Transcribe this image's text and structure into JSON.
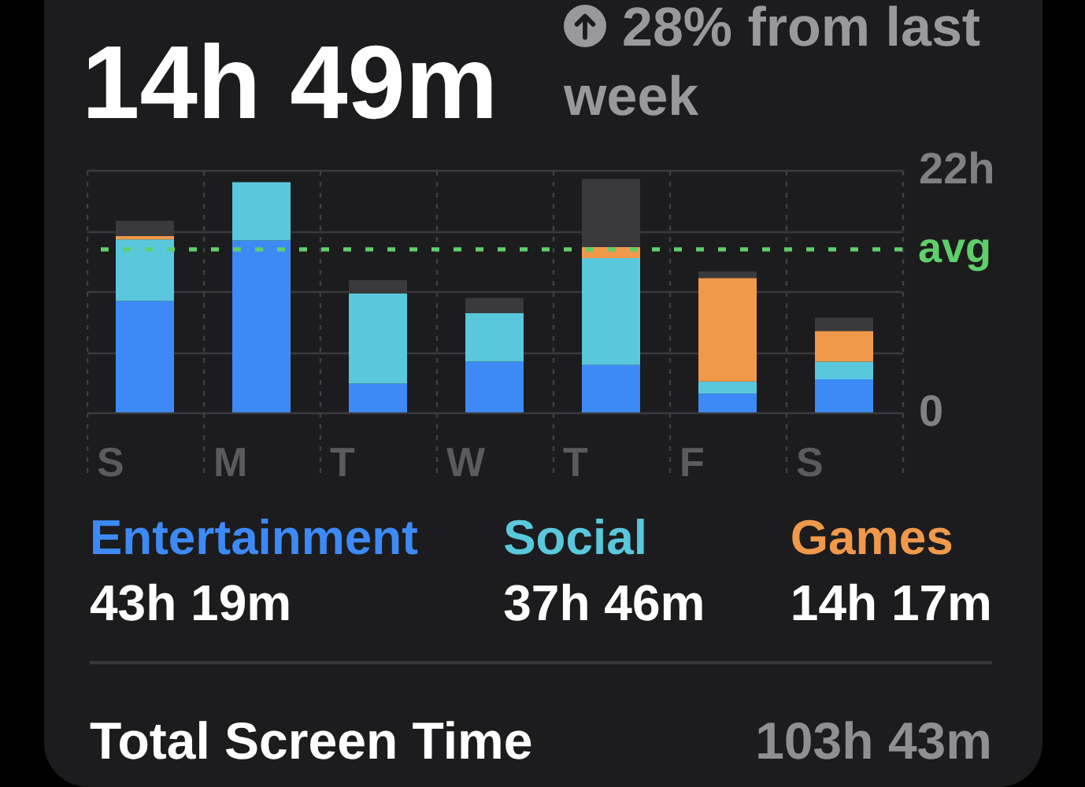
{
  "chart_data": {
    "type": "bar",
    "title": "14h 49m",
    "subtitle": "28% from last week",
    "categories": [
      "S",
      "M",
      "T",
      "W",
      "T",
      "F",
      "S"
    ],
    "series": [
      {
        "name": "Entertainment",
        "color": "#3d8af7",
        "values": [
          10.1,
          15.6,
          2.6,
          4.6,
          4.3,
          1.7,
          3.0
        ]
      },
      {
        "name": "Social",
        "color": "#5ac8dc",
        "values": [
          5.6,
          5.3,
          8.2,
          4.4,
          9.7,
          1.1,
          1.6
        ]
      },
      {
        "name": "Games",
        "color": "#f0994b",
        "values": [
          0.3,
          null,
          null,
          null,
          1.0,
          9.4,
          2.8
        ]
      },
      {
        "color": "#3a3a3c",
        "values": [
          1.4,
          null,
          1.2,
          1.4,
          6.2,
          0.6,
          1.2
        ]
      }
    ],
    "stacked": true,
    "ylim": [
      0,
      22
    ],
    "yticks": [
      0,
      {
        "value": 5.5,
        "label": null
      },
      {
        "value": 11,
        "label": null
      },
      {
        "value": 16.5,
        "label": null
      },
      {
        "value": 22,
        "label": "22h"
      }
    ],
    "grid": true,
    "legend": "bottom",
    "ref_lines": [
      {
        "axis": "y",
        "value": 14.8,
        "label": "avg",
        "color": "#5fcf6a",
        "line_style": "dashed"
      }
    ],
    "annotations": [
      "43h 19m",
      "37h 46m",
      "14h 17m",
      "Total Screen Time",
      "103h 43m"
    ]
  }
}
